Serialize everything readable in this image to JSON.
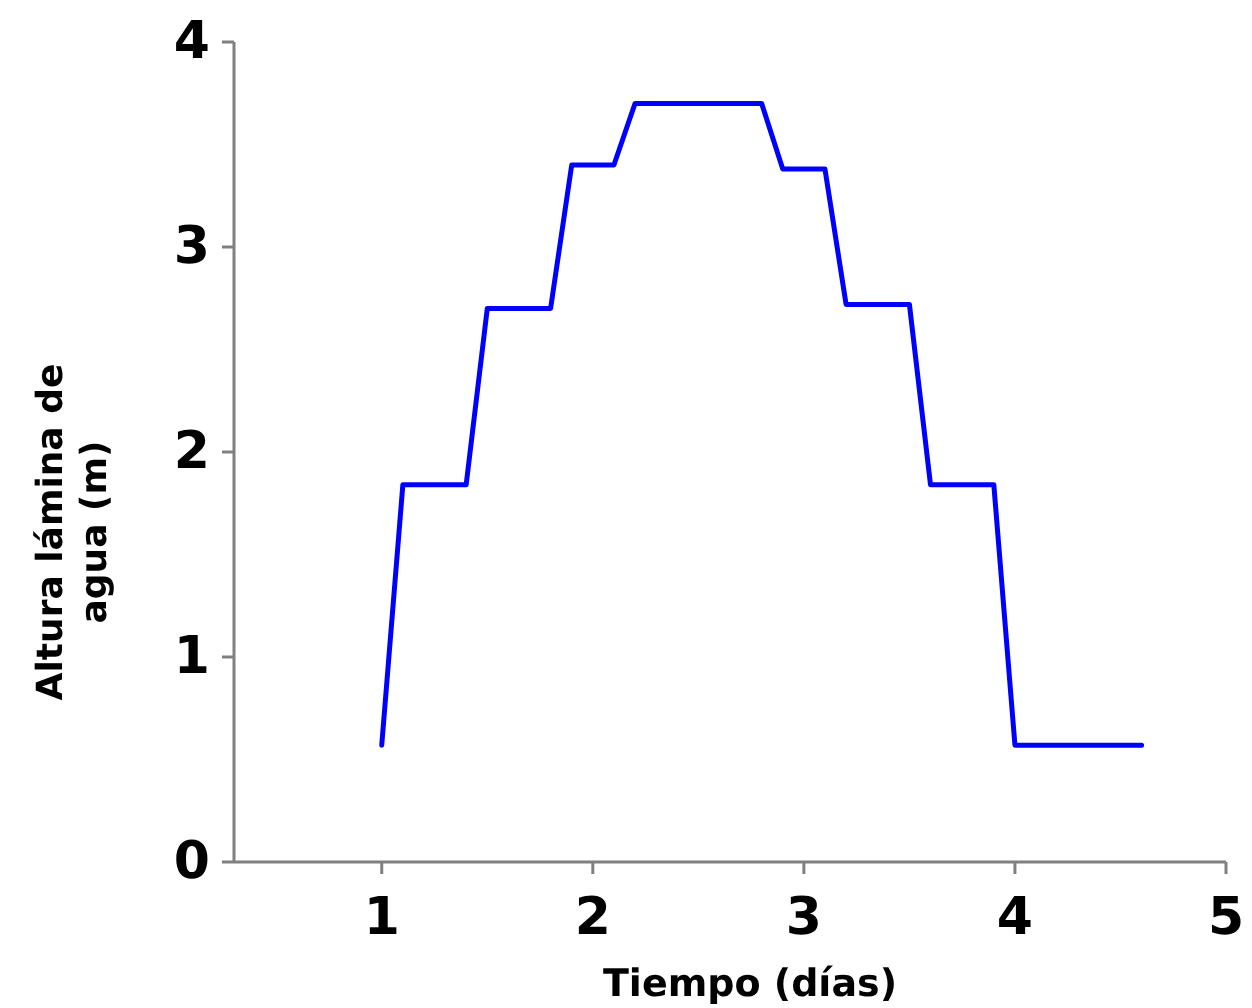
{
  "chart_data": {
    "type": "line",
    "xlabel": "Tiempo (días)",
    "ylabel": "Altura lámina de agua (m)",
    "x": [
      1,
      1.1,
      1.4,
      1.5,
      1.8,
      1.9,
      2.1,
      2.2,
      2.8,
      2.9,
      3.1,
      3.2,
      3.5,
      3.6,
      3.9,
      4,
      4.6
    ],
    "series": [
      {
        "color": "#0000ff",
        "values": [
          0.57,
          1.84,
          1.84,
          2.7,
          2.7,
          3.4,
          3.4,
          3.7,
          3.7,
          3.38,
          3.38,
          2.72,
          2.72,
          1.84,
          1.84,
          0.57,
          0.57
        ]
      }
    ],
    "xlim": [
      0.3,
      5
    ],
    "xticks": [
      1,
      2,
      3,
      4,
      5
    ],
    "ylim": [
      0,
      4
    ],
    "yticks": [
      0,
      1,
      2,
      3,
      4
    ],
    "grid": false,
    "marker": "none",
    "line_style": "solid"
  }
}
